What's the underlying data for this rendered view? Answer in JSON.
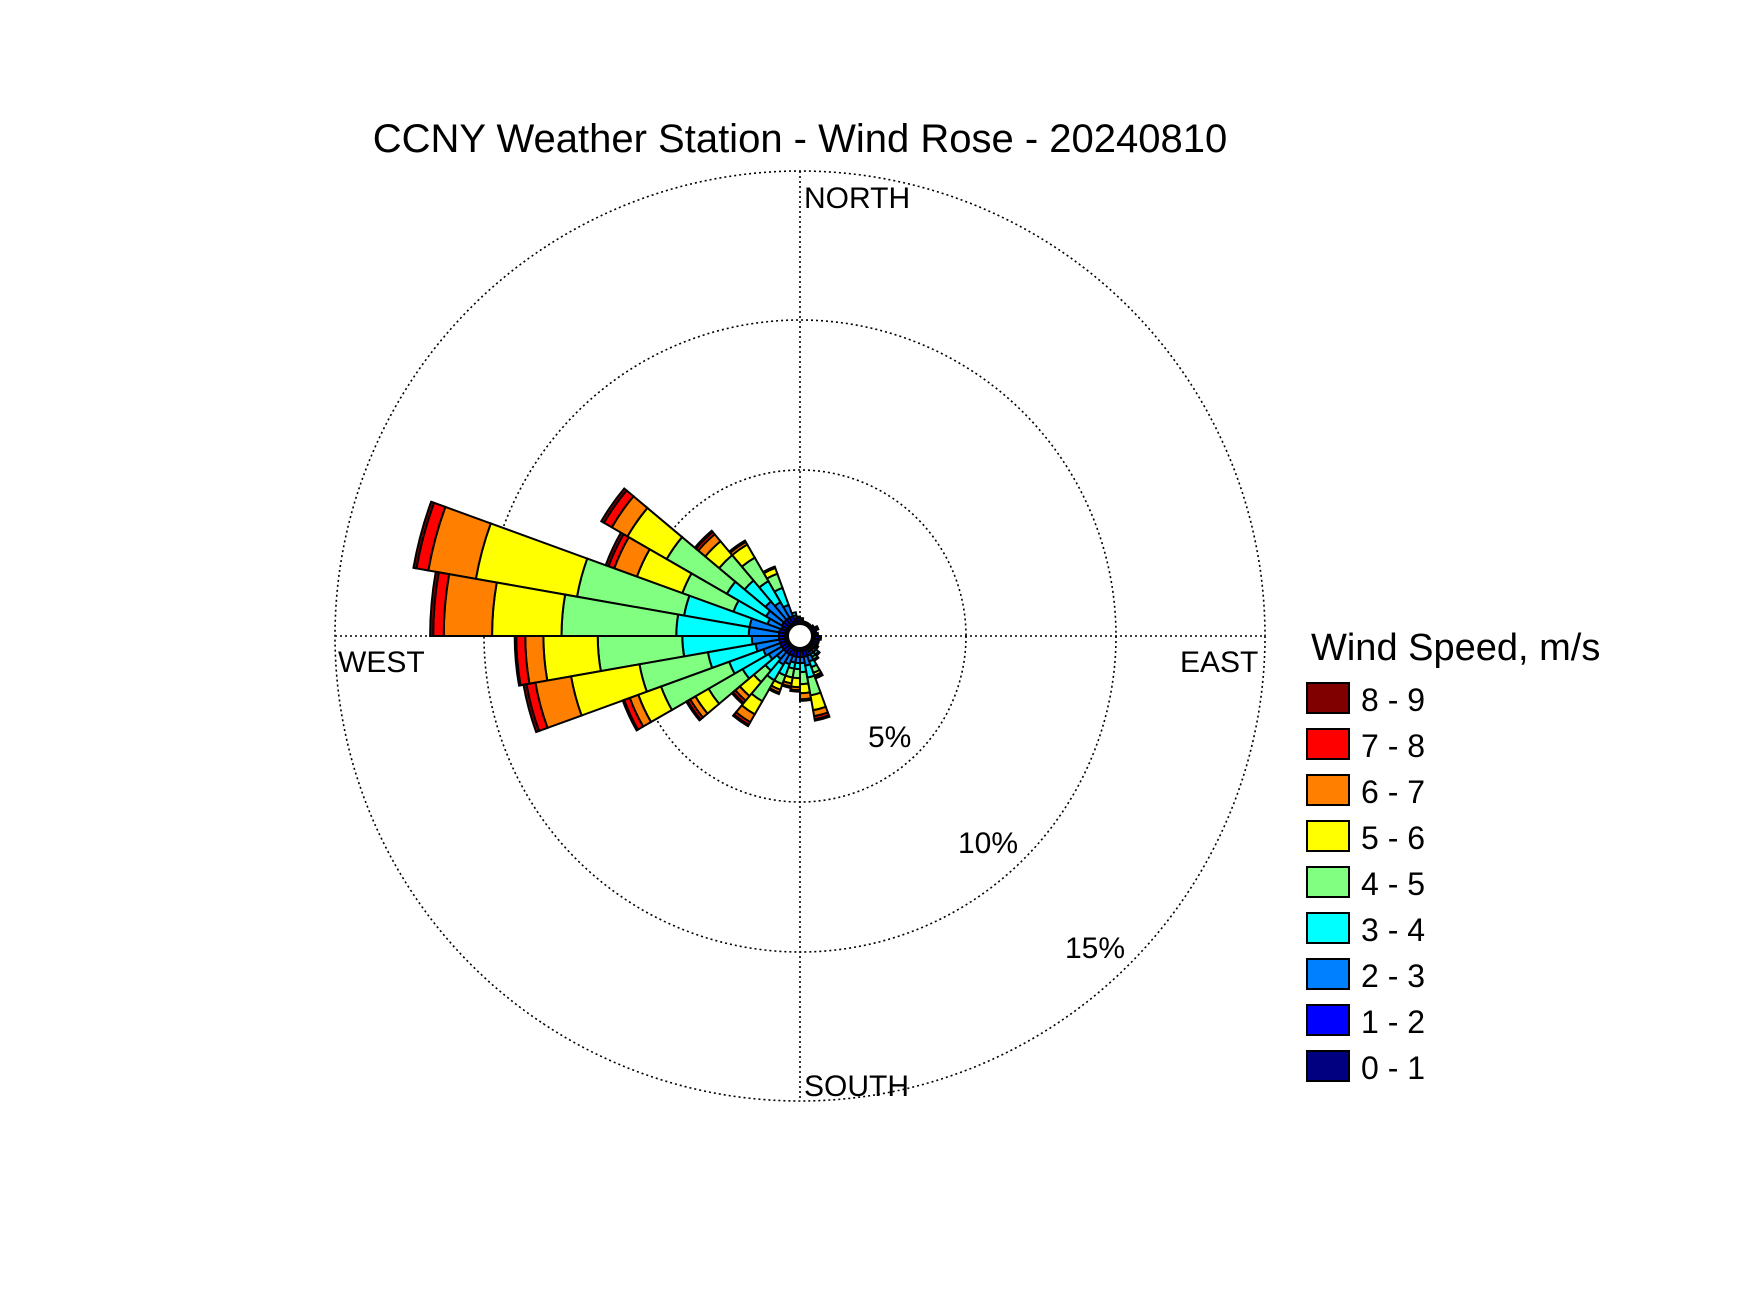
{
  "chart_data": {
    "type": "wind-rose",
    "title": "CCNY Weather Station - Wind Rose - 20240810",
    "direction_labels": {
      "north": "NORTH",
      "east": "EAST",
      "south": "SOUTH",
      "west": "WEST"
    },
    "radial_ticks": [
      {
        "value": 5,
        "label": "5%"
      },
      {
        "value": 10,
        "label": "10%"
      },
      {
        "value": 15,
        "label": "15%"
      }
    ],
    "radial_max": 15,
    "radial_unit": "%",
    "grid": true,
    "legend": {
      "title": "Wind Speed, m/s",
      "placement": "right",
      "bins": [
        {
          "label": "8 - 9",
          "color": "#800000"
        },
        {
          "label": "7 - 8",
          "color": "#ff0000"
        },
        {
          "label": "6 - 7",
          "color": "#ff8000"
        },
        {
          "label": "5 - 6",
          "color": "#ffff00"
        },
        {
          "label": "4 - 5",
          "color": "#80ff80"
        },
        {
          "label": "3 - 4",
          "color": "#00ffff"
        },
        {
          "label": "2 - 3",
          "color": "#0080ff"
        },
        {
          "label": "1 - 2",
          "color": "#0000ff"
        },
        {
          "label": "0 - 1",
          "color": "#000080"
        }
      ]
    },
    "speed_bins_order": [
      "0 - 1",
      "1 - 2",
      "2 - 3",
      "3 - 4",
      "4 - 5",
      "5 - 6",
      "6 - 7",
      "7 - 8",
      "8 - 9"
    ],
    "sector_width_deg": 10,
    "series": [
      {
        "direction_deg": 295,
        "values": [
          0.1,
          0.15,
          0.5,
          1.2,
          1.8,
          1.6,
          0.8,
          0.2,
          0.1
        ]
      },
      {
        "direction_deg": 285,
        "values": [
          0.1,
          0.2,
          1.0,
          2.2,
          3.6,
          3.4,
          1.6,
          0.4,
          0.1
        ]
      },
      {
        "direction_deg": 275,
        "values": [
          0.1,
          0.2,
          1.0,
          2.4,
          3.8,
          2.3,
          1.6,
          0.35,
          0.1
        ]
      },
      {
        "direction_deg": 265,
        "values": [
          0.1,
          0.2,
          0.9,
          2.3,
          2.8,
          1.8,
          0.6,
          0.3,
          0.05
        ]
      },
      {
        "direction_deg": 255,
        "values": [
          0.1,
          0.2,
          0.8,
          1.6,
          2.3,
          2.3,
          1.2,
          0.3,
          0.1
        ]
      },
      {
        "direction_deg": 245,
        "values": [
          0.1,
          0.2,
          0.6,
          1.2,
          2.4,
          0.8,
          0.3,
          0.2,
          0.05
        ]
      },
      {
        "direction_deg": 235,
        "values": [
          0.1,
          0.2,
          0.5,
          1.0,
          1.3,
          0.5,
          0.2,
          0.1,
          0.05
        ]
      },
      {
        "direction_deg": 225,
        "values": [
          0.1,
          0.2,
          0.3,
          0.5,
          0.5,
          0.6,
          0.2,
          0.1,
          0.05
        ]
      },
      {
        "direction_deg": 215,
        "values": [
          0.1,
          0.2,
          0.4,
          0.6,
          0.8,
          0.5,
          0.3,
          0.1,
          0.05
        ]
      },
      {
        "direction_deg": 205,
        "values": [
          0.1,
          0.2,
          0.3,
          0.4,
          0.3,
          0.2,
          0.1,
          0.05,
          0.0
        ]
      },
      {
        "direction_deg": 195,
        "values": [
          0.1,
          0.2,
          0.2,
          0.2,
          0.3,
          0.2,
          0.1,
          0.05,
          0.0
        ]
      },
      {
        "direction_deg": 185,
        "values": [
          0.1,
          0.2,
          0.2,
          0.2,
          0.3,
          0.3,
          0.1,
          0.05,
          0.0
        ]
      },
      {
        "direction_deg": 175,
        "values": [
          0.1,
          0.2,
          0.2,
          0.3,
          0.4,
          0.3,
          0.2,
          0.05,
          0.0
        ]
      },
      {
        "direction_deg": 165,
        "values": [
          0.1,
          0.2,
          0.3,
          0.4,
          0.6,
          0.5,
          0.2,
          0.1,
          0.05
        ]
      },
      {
        "direction_deg": 155,
        "values": [
          0.1,
          0.2,
          0.2,
          0.2,
          0.2,
          0.1,
          0.05,
          0.05,
          0.0
        ]
      },
      {
        "direction_deg": 145,
        "values": [
          0.1,
          0.1,
          0.1,
          0.1,
          0.1,
          0.05,
          0.0,
          0.0,
          0.0
        ]
      },
      {
        "direction_deg": 135,
        "values": [
          0.1,
          0.1,
          0.1,
          0.1,
          0.05,
          0.0,
          0.0,
          0.0,
          0.0
        ]
      },
      {
        "direction_deg": 125,
        "values": [
          0.1,
          0.1,
          0.05,
          0.05,
          0.0,
          0.0,
          0.0,
          0.0,
          0.0
        ]
      },
      {
        "direction_deg": 115,
        "values": [
          0.1,
          0.1,
          0.05,
          0.0,
          0.0,
          0.0,
          0.0,
          0.0,
          0.0
        ]
      },
      {
        "direction_deg": 105,
        "values": [
          0.1,
          0.1,
          0.05,
          0.0,
          0.0,
          0.0,
          0.0,
          0.0,
          0.0
        ]
      },
      {
        "direction_deg": 95,
        "values": [
          0.1,
          0.1,
          0.05,
          0.05,
          0.0,
          0.0,
          0.0,
          0.0,
          0.0
        ]
      },
      {
        "direction_deg": 85,
        "values": [
          0.1,
          0.05,
          0.05,
          0.0,
          0.0,
          0.0,
          0.0,
          0.0,
          0.0
        ]
      },
      {
        "direction_deg": 75,
        "values": [
          0.1,
          0.05,
          0.0,
          0.0,
          0.0,
          0.0,
          0.0,
          0.0,
          0.0
        ]
      },
      {
        "direction_deg": 65,
        "values": [
          0.1,
          0.1,
          0.05,
          0.0,
          0.0,
          0.0,
          0.0,
          0.0,
          0.0
        ]
      },
      {
        "direction_deg": 55,
        "values": [
          0.1,
          0.05,
          0.0,
          0.0,
          0.0,
          0.0,
          0.0,
          0.0,
          0.0
        ]
      },
      {
        "direction_deg": 45,
        "values": [
          0.05,
          0.05,
          0.0,
          0.0,
          0.0,
          0.0,
          0.0,
          0.0,
          0.0
        ]
      },
      {
        "direction_deg": 35,
        "values": [
          0.05,
          0.05,
          0.0,
          0.0,
          0.0,
          0.0,
          0.0,
          0.0,
          0.0
        ]
      },
      {
        "direction_deg": 25,
        "values": [
          0.05,
          0.05,
          0.0,
          0.0,
          0.0,
          0.0,
          0.0,
          0.0,
          0.0
        ]
      },
      {
        "direction_deg": 15,
        "values": [
          0.05,
          0.05,
          0.0,
          0.0,
          0.0,
          0.0,
          0.0,
          0.0,
          0.0
        ]
      },
      {
        "direction_deg": 5,
        "values": [
          0.05,
          0.1,
          0.05,
          0.0,
          0.0,
          0.0,
          0.0,
          0.0,
          0.0
        ]
      },
      {
        "direction_deg": 355,
        "values": [
          0.1,
          0.1,
          0.05,
          0.0,
          0.0,
          0.0,
          0.0,
          0.0,
          0.0
        ]
      },
      {
        "direction_deg": 345,
        "values": [
          0.1,
          0.1,
          0.1,
          0.1,
          0.0,
          0.0,
          0.0,
          0.0,
          0.0
        ]
      },
      {
        "direction_deg": 335,
        "values": [
          0.1,
          0.2,
          0.4,
          0.6,
          0.5,
          0.2,
          0.05,
          0.0,
          0.0
        ]
      },
      {
        "direction_deg": 325,
        "values": [
          0.1,
          0.2,
          0.6,
          0.8,
          0.9,
          0.5,
          0.1,
          0.05,
          0.0
        ]
      },
      {
        "direction_deg": 315,
        "values": [
          0.1,
          0.2,
          0.8,
          0.9,
          1.1,
          0.6,
          0.3,
          0.1,
          0.05
        ]
      },
      {
        "direction_deg": 305,
        "values": [
          0.1,
          0.2,
          0.6,
          1.5,
          2.3,
          1.5,
          0.6,
          0.3,
          0.1
        ]
      }
    ]
  }
}
